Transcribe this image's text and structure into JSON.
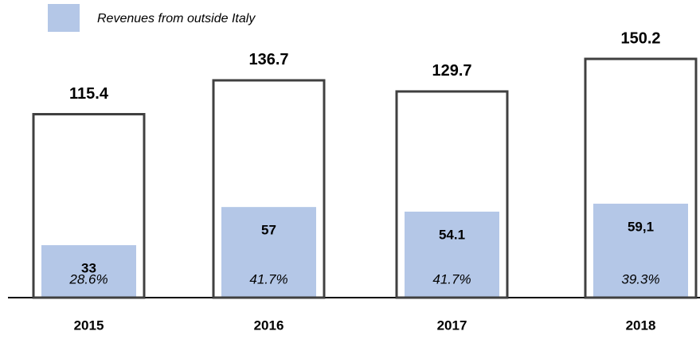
{
  "chart_data": {
    "type": "bar",
    "categories": [
      "2015",
      "2016",
      "2017",
      "2018"
    ],
    "series": [
      {
        "color": "#404040",
        "values": [
          115.4,
          136.7,
          129.7,
          150.2
        ]
      },
      {
        "name": "Revenues from outside Italy",
        "color": "#b4c7e7",
        "values": [
          33,
          57,
          54.1,
          59.1
        ],
        "value_labels": [
          "33",
          "57",
          "54.1",
          "59,1"
        ]
      }
    ],
    "annotations": [
      "28.6%",
      "41.7%",
      "41.7%",
      "39.3%"
    ]
  }
}
